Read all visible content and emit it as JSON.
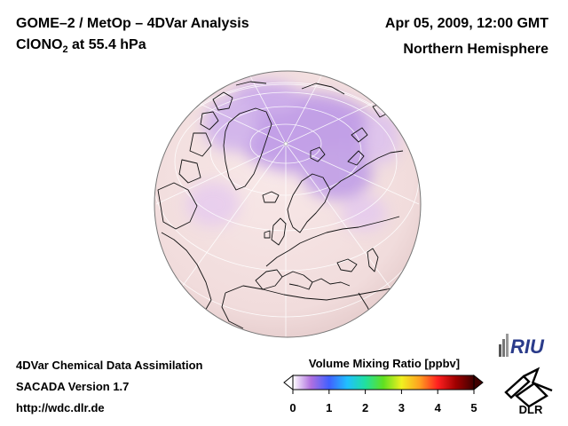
{
  "header": {
    "title_line1": "GOME–2 / MetOp – 4DVar Analysis",
    "species_main": "ClONO",
    "species_sub": "2",
    "species_rest": " at 55.4 hPa",
    "date": "Apr 05, 2009, 12:00 GMT",
    "region": "Northern Hemisphere"
  },
  "footer": {
    "line1": "4DVar Chemical Data Assimilation",
    "line2": "SACADA Version 1.7",
    "line3": "http://wdc.dlr.de"
  },
  "colorbar": {
    "title": "Volume Mixing Ratio [ppbv]",
    "min": 0,
    "max": 5,
    "ticks": [
      "0",
      "1",
      "2",
      "3",
      "4",
      "5"
    ],
    "colors": [
      "#ffffff",
      "#b070e0",
      "#4060ff",
      "#20c0ff",
      "#20e0a0",
      "#60e020",
      "#f0f020",
      "#ffa020",
      "#ff2020",
      "#a00000",
      "#400000"
    ]
  },
  "logos": {
    "riu": "RIU",
    "dlr": "DLR"
  },
  "map": {
    "projection": "orthographic-northern-hemisphere",
    "background_color": "#f3dedd",
    "high_value_color": "#a880e8"
  }
}
